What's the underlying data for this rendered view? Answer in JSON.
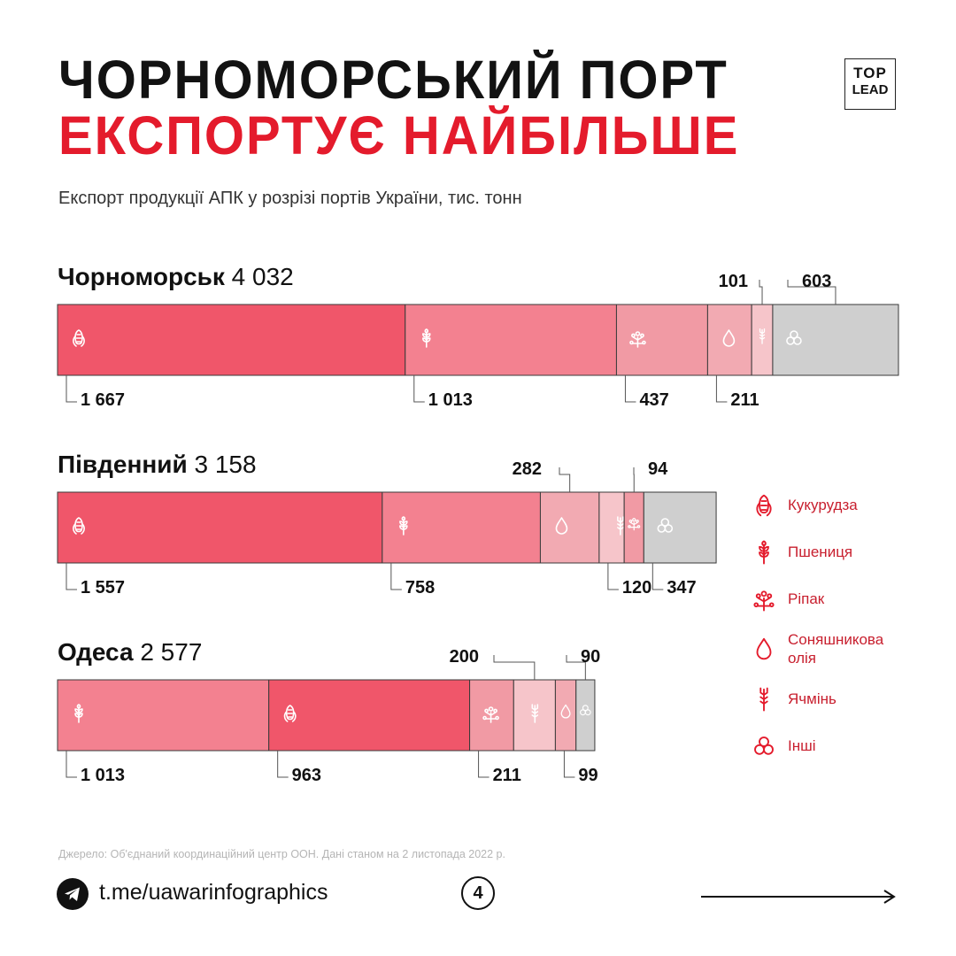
{
  "header": {
    "title_line1": "ЧОРНОМОРСЬКИЙ ПОРТ",
    "title_line2": "ЕКСПОРТУЄ НАЙБІЛЬШЕ",
    "subtitle": "Експорт продукції АПК у розрізі портів України, тис. тонн",
    "logo_top": "TOP",
    "logo_bottom": "LEAD"
  },
  "colors": {
    "accent": "#e41b2c",
    "corn": "#f0566a",
    "wheat": "#f38190",
    "rapeseed": "#f19aa4",
    "oil": "#f2aab2",
    "barley": "#f6c5ca",
    "other": "#cfcfcf",
    "legend_text": "#c81f2e"
  },
  "chart_data": {
    "type": "stacked-bar",
    "units": "тис. тонн",
    "title": "Експорт продукції АПК у розрізі портів України, тис. тонн",
    "legend": [
      {
        "key": "corn",
        "label": "Кукурудза",
        "icon": "corn-icon"
      },
      {
        "key": "wheat",
        "label": "Пшениця",
        "icon": "wheat-icon"
      },
      {
        "key": "rapeseed",
        "label": "Ріпак",
        "icon": "rapeseed-icon"
      },
      {
        "key": "oil",
        "label": "Соняшникова олія",
        "icon": "oil-drop-icon"
      },
      {
        "key": "barley",
        "label": "Ячмінь",
        "icon": "barley-icon"
      },
      {
        "key": "other",
        "label": "Інші",
        "icon": "circles-icon"
      }
    ],
    "ports": [
      {
        "name": "Чорноморськ",
        "total": 4032,
        "total_label": "4 032",
        "segments": [
          {
            "cat": "corn",
            "value": 1667,
            "label": "1 667"
          },
          {
            "cat": "wheat",
            "value": 1013,
            "label": "1 013"
          },
          {
            "cat": "rapeseed",
            "value": 437,
            "label": "437"
          },
          {
            "cat": "oil",
            "value": 211,
            "label": "211"
          },
          {
            "cat": "barley",
            "value": 101,
            "label": "101"
          },
          {
            "cat": "other",
            "value": 603,
            "label": "603"
          }
        ]
      },
      {
        "name": "Південний",
        "total": 3158,
        "total_label": "3 158",
        "segments": [
          {
            "cat": "corn",
            "value": 1557,
            "label": "1 557"
          },
          {
            "cat": "wheat",
            "value": 758,
            "label": "758"
          },
          {
            "cat": "oil",
            "value": 282,
            "label": "282"
          },
          {
            "cat": "barley",
            "value": 120,
            "label": "120"
          },
          {
            "cat": "rapeseed",
            "value": 94,
            "label": "94"
          },
          {
            "cat": "other",
            "value": 347,
            "label": "347"
          }
        ]
      },
      {
        "name": "Одеса",
        "total": 2577,
        "total_label": "2 577",
        "segments": [
          {
            "cat": "wheat",
            "value": 1013,
            "label": "1 013"
          },
          {
            "cat": "corn",
            "value": 963,
            "label": "963"
          },
          {
            "cat": "rapeseed",
            "value": 211,
            "label": "211"
          },
          {
            "cat": "barley",
            "value": 200,
            "label": "200"
          },
          {
            "cat": "oil",
            "value": 99,
            "label": "99"
          },
          {
            "cat": "other",
            "value": 90,
            "label": "90"
          }
        ]
      }
    ]
  },
  "footer": {
    "source": "Джерело: Об'єднаний координаційний центр ООН. Дані станом на 2 листопада 2022 р.",
    "link": "t.me/uawarinfographics",
    "page_number": "4"
  }
}
